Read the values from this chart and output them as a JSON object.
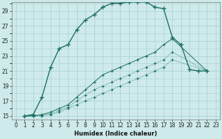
{
  "xlabel": "Humidex (Indice chaleur)",
  "bg_color": "#ceeaea",
  "grid_color": "#a8cfcf",
  "line_color": "#1a6e62",
  "xlim": [
    -0.5,
    23.5
  ],
  "ylim": [
    14.5,
    30.2
  ],
  "xticks": [
    0,
    1,
    2,
    3,
    4,
    5,
    6,
    7,
    8,
    9,
    10,
    11,
    12,
    13,
    14,
    15,
    16,
    17,
    18,
    19,
    20,
    21,
    22,
    23
  ],
  "yticks": [
    15,
    17,
    19,
    21,
    23,
    25,
    27,
    29
  ],
  "lines": [
    {
      "x": [
        1,
        2,
        3,
        4,
        5,
        6,
        7,
        8,
        9,
        10,
        11,
        12,
        13,
        14,
        15,
        16,
        17,
        18,
        19,
        20,
        21,
        22
      ],
      "y": [
        15,
        15.2,
        17.5,
        21.5,
        24.0,
        24.5,
        26.5,
        27.8,
        28.5,
        29.5,
        30.0,
        30.0,
        30.2,
        30.2,
        30.2,
        29.5,
        29.3,
        25.5,
        24.5,
        21.2,
        21.0,
        21.0
      ],
      "lw": 1.0,
      "marker": "+",
      "ms": 4,
      "mew": 1.0,
      "ls": "-"
    },
    {
      "x": [
        1,
        2,
        3,
        4,
        5,
        6,
        7,
        8,
        9,
        10,
        11,
        12,
        13,
        14,
        15,
        16,
        17,
        18,
        22
      ],
      "y": [
        15,
        15.0,
        15.2,
        15.5,
        16.0,
        16.5,
        17.5,
        18.5,
        19.5,
        20.5,
        21.0,
        21.5,
        22.0,
        22.5,
        23.0,
        23.5,
        24.5,
        25.3,
        21.0
      ],
      "lw": 0.7,
      "marker": "+",
      "ms": 3,
      "mew": 0.8,
      "ls": "-"
    },
    {
      "x": [
        1,
        2,
        3,
        4,
        5,
        6,
        7,
        8,
        9,
        10,
        11,
        12,
        13,
        14,
        15,
        16,
        17,
        18,
        22
      ],
      "y": [
        15,
        15.0,
        15.1,
        15.3,
        15.7,
        16.2,
        17.0,
        17.8,
        18.5,
        19.0,
        19.5,
        20.0,
        20.5,
        21.0,
        21.5,
        22.0,
        22.5,
        23.5,
        21.0
      ],
      "lw": 0.7,
      "marker": "+",
      "ms": 3,
      "mew": 0.8,
      "ls": ":"
    },
    {
      "x": [
        1,
        2,
        3,
        4,
        5,
        6,
        7,
        8,
        9,
        10,
        11,
        12,
        13,
        14,
        15,
        16,
        17,
        18,
        22
      ],
      "y": [
        15,
        15.0,
        15.0,
        15.2,
        15.5,
        16.0,
        16.5,
        17.0,
        17.5,
        18.0,
        18.5,
        19.0,
        19.5,
        20.0,
        20.5,
        21.0,
        21.5,
        22.5,
        21.0
      ],
      "lw": 0.7,
      "marker": "+",
      "ms": 3,
      "mew": 0.8,
      "ls": ":"
    }
  ]
}
